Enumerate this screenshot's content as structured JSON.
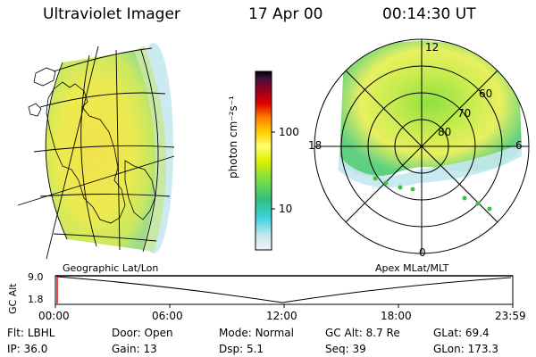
{
  "header": {
    "instrument": "Ultraviolet Imager",
    "date": "17 Apr 00",
    "time": "00:14:30 UT"
  },
  "colorbar": {
    "unit_label": "photon cm⁻²s⁻¹",
    "ticks": [
      "100",
      "10"
    ],
    "colors": [
      "#f0f0f0",
      "#c8e8f0",
      "#40d0e0",
      "#30c080",
      "#80e040",
      "#e0f000",
      "#ffff60",
      "#ffd000",
      "#ff8000",
      "#e00000",
      "#900020",
      "#401040",
      "#000000"
    ]
  },
  "polar_plot": {
    "mlt_labels": [
      "12",
      "18",
      "6",
      "0"
    ],
    "mlat_labels": [
      "60",
      "70",
      "80"
    ]
  },
  "timeline": {
    "left_caption": "Geographic Lat/Lon",
    "right_caption": "Apex  MLat/MLT",
    "axis_label": "GC Alt",
    "y_ticks": [
      "9.0",
      "1.8"
    ],
    "x_ticks": [
      "00:00",
      "06:00",
      "12:00",
      "18:00",
      "23:59"
    ]
  },
  "status": {
    "row1": [
      {
        "label": "Flt:",
        "value": "LBHL"
      },
      {
        "label": "Door:",
        "value": "Open"
      },
      {
        "label": "Mode:",
        "value": "Normal"
      },
      {
        "label": "GC Alt:",
        "value": "8.7 Re"
      },
      {
        "label": "GLat:",
        "value": "69.4"
      }
    ],
    "row2": [
      {
        "label": "IP:",
        "value": "36.0"
      },
      {
        "label": "Gain:",
        "value": "13"
      },
      {
        "label": "Dsp:",
        "value": "5.1"
      },
      {
        "label": "Seq:",
        "value": "39"
      },
      {
        "label": "GLon:",
        "value": "173.3"
      }
    ]
  }
}
